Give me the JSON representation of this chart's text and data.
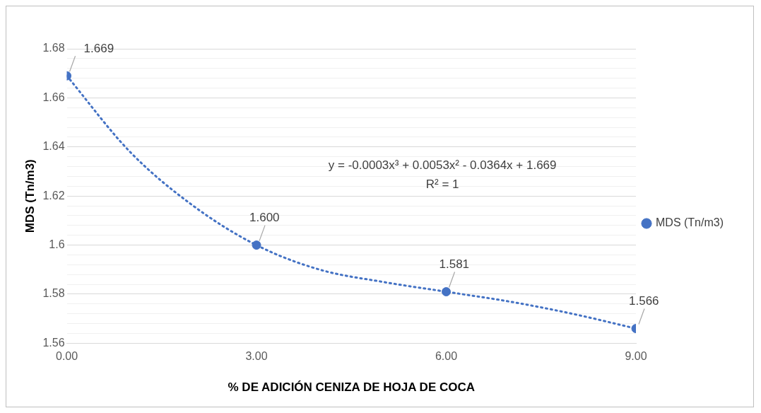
{
  "chart_data": {
    "type": "scatter",
    "xlabel": "% DE ADICIÓN CENIZA DE HOJA DE COCA",
    "ylabel": "MDS (Tn/m3)",
    "xlim": [
      0,
      9
    ],
    "xticks": [
      {
        "value": 0,
        "label": "0.00"
      },
      {
        "value": 3,
        "label": "3.00"
      },
      {
        "value": 6,
        "label": "6.00"
      },
      {
        "value": 9,
        "label": "9.00"
      }
    ],
    "ylim": [
      1.56,
      1.68
    ],
    "yticks": [
      1.56,
      {
        "value": 1.564,
        "label": null
      },
      {
        "value": 1.568,
        "label": null
      },
      {
        "value": 1.572,
        "label": null
      },
      {
        "value": 1.576,
        "label": null
      },
      1.58,
      {
        "value": 1.584,
        "label": null
      },
      {
        "value": 1.588,
        "label": null
      },
      {
        "value": 1.592,
        "label": null
      },
      {
        "value": 1.596,
        "label": null
      },
      1.6,
      {
        "value": 1.604,
        "label": null
      },
      {
        "value": 1.608,
        "label": null
      },
      {
        "value": 1.612,
        "label": null
      },
      {
        "value": 1.616,
        "label": null
      },
      1.62,
      {
        "value": 1.624,
        "label": null
      },
      {
        "value": 1.628,
        "label": null
      },
      {
        "value": 1.632,
        "label": null
      },
      {
        "value": 1.636,
        "label": null
      },
      1.64,
      {
        "value": 1.644,
        "label": null
      },
      {
        "value": 1.648,
        "label": null
      },
      {
        "value": 1.652,
        "label": null
      },
      {
        "value": 1.656,
        "label": null
      },
      1.66,
      {
        "value": 1.664,
        "label": null
      },
      {
        "value": 1.668,
        "label": null
      },
      {
        "value": 1.672,
        "label": null
      },
      {
        "value": 1.676,
        "label": null
      },
      1.68
    ],
    "grid": "y",
    "legend": "right",
    "series": [
      {
        "name": "MDS (Tn/m3)",
        "color": "#4472c4",
        "marker": "circle",
        "x": [
          0,
          3,
          6,
          9
        ],
        "values": [
          1.669,
          1.6,
          1.581,
          1.566
        ],
        "value_labels": [
          "1.669",
          "1.600",
          "1.581",
          "1.566"
        ]
      },
      {
        "type": "line",
        "line_style": "dotted",
        "marker": "none",
        "color": "#4472c4",
        "x": [
          0,
          1,
          2,
          3,
          4,
          5,
          6,
          7,
          8,
          9
        ],
        "values": [
          1.669,
          1.638,
          1.616,
          1.6,
          1.59,
          1.585,
          1.581,
          1.577,
          1.572,
          1.566
        ]
      }
    ],
    "annotations": [
      "y = -0.0003x³ + 0.0053x² - 0.0364x + 1.669",
      "R² = 1"
    ]
  }
}
